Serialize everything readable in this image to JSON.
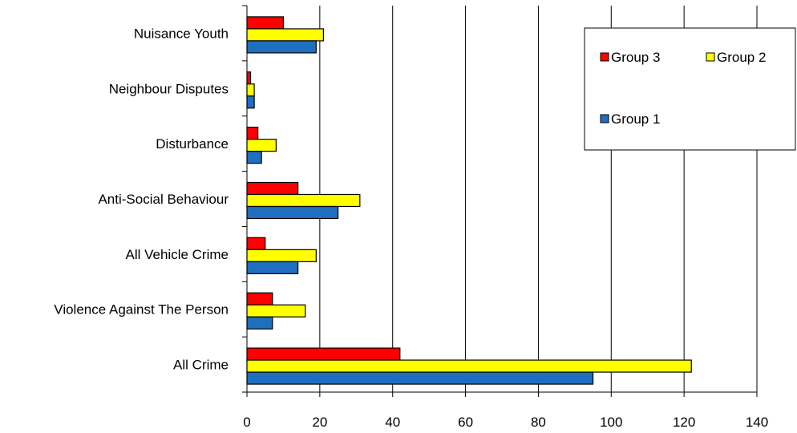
{
  "chart_data": {
    "type": "bar",
    "orientation": "horizontal",
    "title": "",
    "xlabel": "",
    "ylabel": "",
    "categories": [
      "Nuisance Youth",
      "Neighbour Disputes",
      "Disturbance",
      "Anti-Social Behaviour",
      "All Vehicle Crime",
      "Violence Against The Person",
      "All Crime"
    ],
    "series": [
      {
        "name": "Group 3",
        "color": "#ff0000",
        "values": [
          10,
          1,
          3,
          14,
          5,
          7,
          42
        ]
      },
      {
        "name": "Group 2",
        "color": "#ffff00",
        "values": [
          21,
          2,
          8,
          31,
          19,
          16,
          122
        ]
      },
      {
        "name": "Group 1",
        "color": "#1f6fbf",
        "values": [
          19,
          2,
          4,
          25,
          14,
          7,
          95
        ]
      }
    ],
    "xlim": [
      0,
      140
    ],
    "xticks": [
      0,
      20,
      40,
      60,
      80,
      100,
      120,
      140
    ],
    "grid": "vertical",
    "legend_position": "top-right"
  }
}
